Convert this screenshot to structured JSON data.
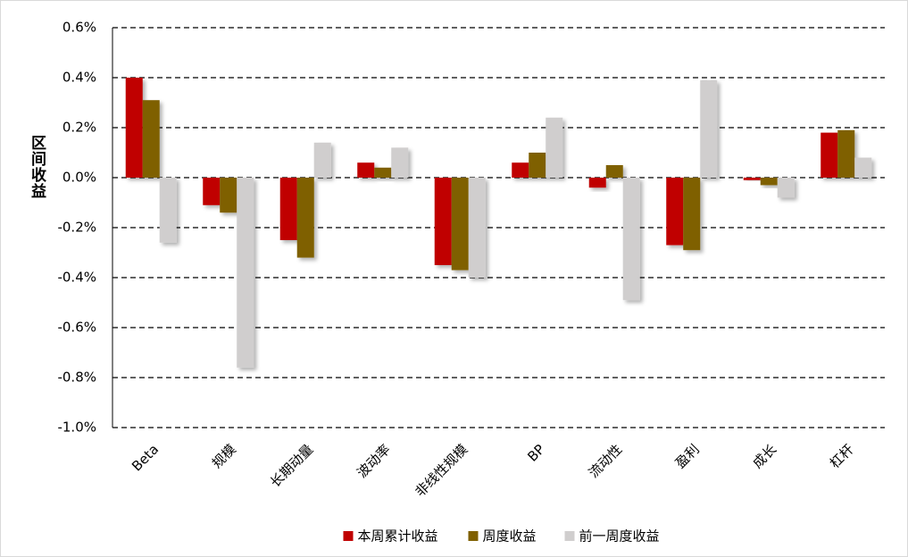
{
  "chart_data": {
    "type": "bar",
    "y_label": "区间收益",
    "categories": [
      "Beta",
      "规模",
      "长期动量",
      "波动率",
      "非线性规模",
      "BP",
      "流动性",
      "盈利",
      "成长",
      "杠杆"
    ],
    "series": [
      {
        "name": "本周累计收益",
        "color": "#c00000",
        "values": [
          0.4,
          -0.11,
          -0.25,
          0.06,
          -0.35,
          0.06,
          -0.04,
          -0.27,
          -0.01,
          0.18
        ]
      },
      {
        "name": "周度收益",
        "color": "#7f6000",
        "values": [
          0.31,
          -0.14,
          -0.32,
          0.04,
          -0.37,
          0.1,
          0.05,
          -0.29,
          -0.03,
          0.19
        ]
      },
      {
        "name": "前一周度收益",
        "color": "#d0cece",
        "values": [
          -0.26,
          -0.76,
          0.14,
          0.12,
          -0.4,
          0.24,
          -0.49,
          0.39,
          -0.08,
          0.08
        ]
      }
    ],
    "ylim": [
      -1.0,
      0.6
    ],
    "yticks": [
      {
        "value": -1.0,
        "label": "-1.0%"
      },
      {
        "value": -0.8,
        "label": "-0.8%"
      },
      {
        "value": -0.6,
        "label": "-0.6%"
      },
      {
        "value": -0.4,
        "label": "-0.4%"
      },
      {
        "value": -0.2,
        "label": "-0.2%"
      },
      {
        "value": 0.0,
        "label": "0.0%"
      },
      {
        "value": 0.2,
        "label": "0.2%"
      },
      {
        "value": 0.4,
        "label": "0.4%"
      },
      {
        "value": 0.6,
        "label": "0.6%"
      }
    ],
    "grid": true,
    "legend": "bottom"
  }
}
